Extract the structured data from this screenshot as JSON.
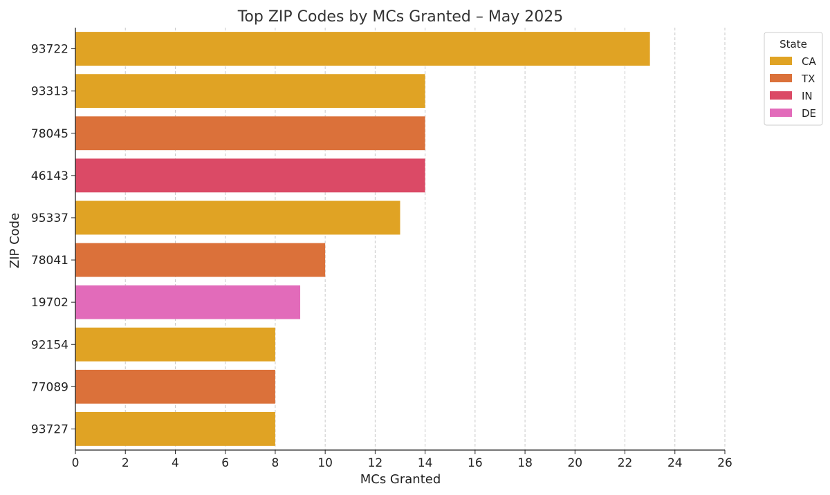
{
  "chart_data": {
    "type": "bar",
    "orientation": "horizontal",
    "title": "Top ZIP Codes by MCs Granted – May 2025",
    "xlabel": "MCs Granted",
    "ylabel": "ZIP Code",
    "xlim": [
      0,
      26
    ],
    "xticks": [
      0,
      2,
      4,
      6,
      8,
      10,
      12,
      14,
      16,
      18,
      20,
      22,
      24,
      26
    ],
    "grid": "vertical dashed",
    "legend": {
      "title": "State",
      "placement": "top-right outside",
      "entries": [
        {
          "label": "CA",
          "color": "#E0A324"
        },
        {
          "label": "TX",
          "color": "#DB713A"
        },
        {
          "label": "IN",
          "color": "#DB4A66"
        },
        {
          "label": "DE",
          "color": "#E26BBA"
        }
      ]
    },
    "categories": [
      "93722",
      "93313",
      "78045",
      "46143",
      "95337",
      "78041",
      "19702",
      "92154",
      "77089",
      "93727"
    ],
    "values": [
      23,
      14,
      14,
      14,
      13,
      10,
      9,
      8,
      8,
      8
    ],
    "states": [
      "CA",
      "CA",
      "TX",
      "IN",
      "CA",
      "TX",
      "DE",
      "CA",
      "TX",
      "CA"
    ]
  }
}
